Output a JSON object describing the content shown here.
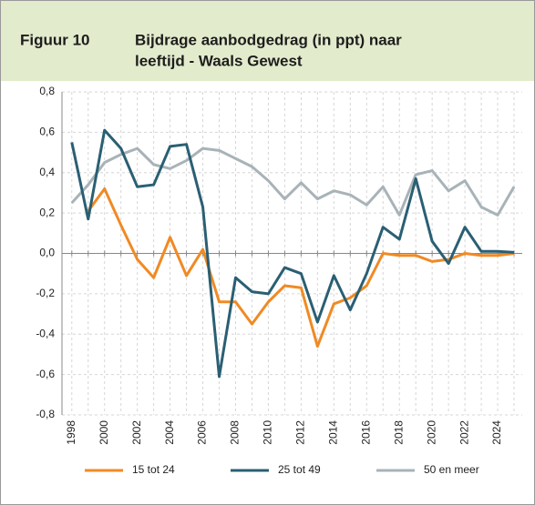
{
  "chart_data": {
    "type": "line",
    "label": "Figuur 10",
    "title": [
      "Bijdrage aanbodgedrag (in ppt) naar",
      "leeftijd - Waals Gewest"
    ],
    "x": [
      1998,
      1999,
      2000,
      2001,
      2002,
      2003,
      2004,
      2005,
      2006,
      2007,
      2008,
      2009,
      2010,
      2011,
      2012,
      2013,
      2014,
      2015,
      2016,
      2017,
      2018,
      2019,
      2020,
      2021,
      2022,
      2023,
      2024,
      2025
    ],
    "xlim": [
      1997.4,
      2025.5
    ],
    "xticks": [
      1998,
      2000,
      2002,
      2004,
      2006,
      2008,
      2010,
      2012,
      2014,
      2016,
      2018,
      2020,
      2022,
      2024
    ],
    "ylim": [
      -0.8,
      0.8
    ],
    "yticks": [
      {
        "value": -0.8,
        "label": "-0,8"
      },
      {
        "value": -0.6,
        "label": "-0,6"
      },
      {
        "value": -0.4,
        "label": "-0,4"
      },
      {
        "value": -0.2,
        "label": "-0,2"
      },
      {
        "value": 0,
        "label": "0,0"
      },
      {
        "value": 0.2,
        "label": "0,2"
      },
      {
        "value": 0.4,
        "label": "0,4"
      },
      {
        "value": 0.6,
        "label": "0,6"
      },
      {
        "value": 0.8,
        "label": "0,8"
      }
    ],
    "grid": true,
    "legend": "bottom",
    "series": [
      {
        "name": "15 tot 24",
        "color": "#f08a24",
        "values": [
          null,
          0.21,
          0.32,
          0.14,
          -0.03,
          -0.12,
          0.08,
          -0.11,
          0.02,
          -0.24,
          -0.24,
          -0.35,
          -0.24,
          -0.16,
          -0.17,
          -0.46,
          -0.25,
          -0.22,
          -0.16,
          0.0,
          -0.01,
          -0.01,
          -0.04,
          -0.03,
          0.0,
          -0.01,
          -0.01,
          0.0
        ]
      },
      {
        "name": "25 tot 49",
        "color": "#2a5f73",
        "values": [
          0.55,
          0.17,
          0.61,
          0.52,
          0.33,
          0.34,
          0.53,
          0.54,
          0.23,
          -0.61,
          -0.12,
          -0.19,
          -0.2,
          -0.07,
          -0.1,
          -0.34,
          -0.11,
          -0.28,
          -0.1,
          0.13,
          0.07,
          0.37,
          0.06,
          -0.05,
          0.13,
          0.01,
          0.01,
          0.005
        ]
      },
      {
        "name": "50 en meer",
        "color": "#a8b3b8",
        "values": [
          0.25,
          0.34,
          0.45,
          0.49,
          0.52,
          0.44,
          0.42,
          0.46,
          0.52,
          0.51,
          0.47,
          0.43,
          0.36,
          0.27,
          0.35,
          0.27,
          0.31,
          0.29,
          0.24,
          0.33,
          0.19,
          0.39,
          0.41,
          0.31,
          0.36,
          0.23,
          0.19,
          0.33
        ]
      }
    ]
  }
}
